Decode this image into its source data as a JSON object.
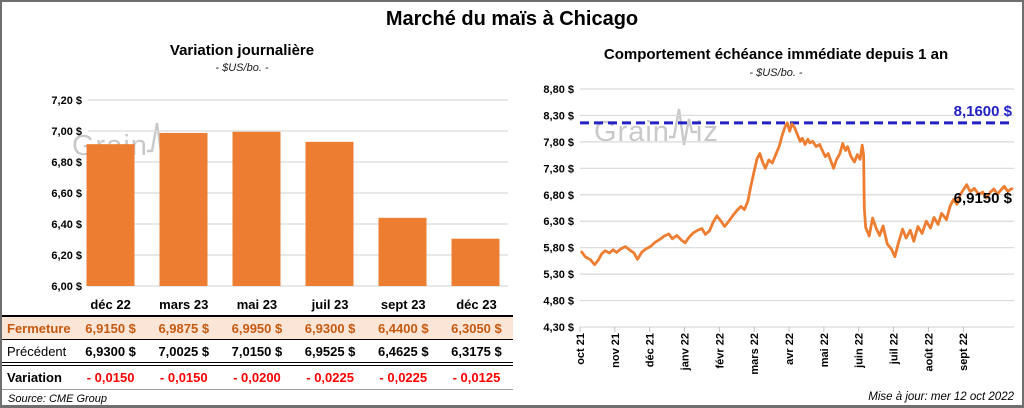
{
  "page": {
    "title": "Marché du maïs à Chicago",
    "source_note": "Source: CME Group",
    "update_note": "Mise à jour: mer 12 oct 2022",
    "watermark_prefix": "Grain",
    "watermark_suffix": "iz"
  },
  "colors": {
    "orange": "#ED7D31",
    "blue": "#2121C4",
    "red": "#FF0000",
    "highlight_row_bg": "#FBE5D6",
    "highlight_row_text": "#C55A11",
    "gridline": "#D9D9D9",
    "tick": "#BFBFBF",
    "watermark": "#c9c9c9"
  },
  "chart_data": [
    {
      "type": "bar",
      "title": "Variation journalière",
      "subtitle": "- $US/bo. -",
      "categories": [
        "déc 22",
        "mars 23",
        "mai 23",
        "juil 23",
        "sept 23",
        "déc 23"
      ],
      "values": [
        6.915,
        6.9875,
        6.995,
        6.93,
        6.44,
        6.305
      ],
      "ylim": [
        6.0,
        7.2
      ],
      "ytick_step": 0.2,
      "ytick_labels": [
        "7,20 $",
        "7,00 $",
        "6,80 $",
        "6,60 $",
        "6,40 $",
        "6,20 $",
        "6,00 $"
      ],
      "bar_color": "#ED7D31",
      "grid": true,
      "legend": null
    },
    {
      "type": "line",
      "title": "Comportement échéance immédiate depuis 1 an",
      "subtitle": "- $US/bo. -",
      "x_tick_labels": [
        "oct 21",
        "nov 21",
        "déc 21",
        "janv 22",
        "févr 22",
        "mars 22",
        "avr 22",
        "mai 22",
        "juin 22",
        "juil 22",
        "août 22",
        "sept 22"
      ],
      "x_max_months": 12.4,
      "ylim": [
        4.3,
        8.8
      ],
      "ytick_step": 0.5,
      "ytick_labels": [
        "8,80 $",
        "8,30 $",
        "7,80 $",
        "7,30 $",
        "6,80 $",
        "6,30 $",
        "5,80 $",
        "5,30 $",
        "4,80 $",
        "4,30 $"
      ],
      "line_color": "#ED7D31",
      "reference_line": {
        "value": 8.16,
        "label": "8,1600 $",
        "color": "#2121C4",
        "style": "dashed"
      },
      "end_label": {
        "value": 6.915,
        "label": "6,9150 $"
      },
      "grid": true,
      "series": [
        {
          "name": "échéance immédiate ($US/bo.)",
          "points": [
            [
              0.05,
              5.72
            ],
            [
              0.15,
              5.63
            ],
            [
              0.3,
              5.57
            ],
            [
              0.42,
              5.48
            ],
            [
              0.52,
              5.56
            ],
            [
              0.62,
              5.68
            ],
            [
              0.72,
              5.74
            ],
            [
              0.85,
              5.7
            ],
            [
              0.95,
              5.76
            ],
            [
              1.05,
              5.71
            ],
            [
              1.18,
              5.78
            ],
            [
              1.3,
              5.82
            ],
            [
              1.42,
              5.76
            ],
            [
              1.55,
              5.7
            ],
            [
              1.65,
              5.58
            ],
            [
              1.78,
              5.72
            ],
            [
              1.9,
              5.78
            ],
            [
              2.02,
              5.82
            ],
            [
              2.15,
              5.9
            ],
            [
              2.3,
              5.96
            ],
            [
              2.42,
              6.02
            ],
            [
              2.55,
              6.06
            ],
            [
              2.65,
              5.97
            ],
            [
              2.78,
              6.03
            ],
            [
              2.9,
              5.95
            ],
            [
              3.02,
              5.89
            ],
            [
              3.12,
              5.99
            ],
            [
              3.25,
              6.08
            ],
            [
              3.38,
              6.13
            ],
            [
              3.5,
              6.16
            ],
            [
              3.6,
              6.05
            ],
            [
              3.72,
              6.12
            ],
            [
              3.82,
              6.28
            ],
            [
              3.93,
              6.4
            ],
            [
              4.04,
              6.31
            ],
            [
              4.15,
              6.2
            ],
            [
              4.27,
              6.3
            ],
            [
              4.38,
              6.4
            ],
            [
              4.5,
              6.5
            ],
            [
              4.62,
              6.58
            ],
            [
              4.72,
              6.52
            ],
            [
              4.82,
              6.68
            ],
            [
              4.9,
              6.95
            ],
            [
              5.0,
              7.25
            ],
            [
              5.08,
              7.48
            ],
            [
              5.16,
              7.58
            ],
            [
              5.24,
              7.42
            ],
            [
              5.32,
              7.3
            ],
            [
              5.42,
              7.46
            ],
            [
              5.52,
              7.4
            ],
            [
              5.62,
              7.56
            ],
            [
              5.72,
              7.72
            ],
            [
              5.8,
              7.92
            ],
            [
              5.88,
              8.08
            ],
            [
              5.95,
              8.16
            ],
            [
              6.02,
              8.0
            ],
            [
              6.08,
              8.14
            ],
            [
              6.16,
              8.07
            ],
            [
              6.24,
              7.94
            ],
            [
              6.32,
              7.81
            ],
            [
              6.38,
              7.87
            ],
            [
              6.46,
              7.75
            ],
            [
              6.54,
              7.85
            ],
            [
              6.6,
              7.78
            ],
            [
              6.68,
              7.81
            ],
            [
              6.78,
              7.71
            ],
            [
              6.88,
              7.75
            ],
            [
              6.96,
              7.63
            ],
            [
              7.04,
              7.52
            ],
            [
              7.12,
              7.58
            ],
            [
              7.2,
              7.44
            ],
            [
              7.28,
              7.3
            ],
            [
              7.36,
              7.46
            ],
            [
              7.46,
              7.58
            ],
            [
              7.54,
              7.77
            ],
            [
              7.62,
              7.64
            ],
            [
              7.68,
              7.71
            ],
            [
              7.78,
              7.52
            ],
            [
              7.88,
              7.42
            ],
            [
              7.96,
              7.56
            ],
            [
              8.04,
              7.47
            ],
            [
              8.1,
              7.74
            ],
            [
              8.14,
              7.55
            ],
            [
              8.16,
              6.55
            ],
            [
              8.2,
              6.18
            ],
            [
              8.3,
              6.02
            ],
            [
              8.4,
              6.36
            ],
            [
              8.5,
              6.17
            ],
            [
              8.6,
              6.03
            ],
            [
              8.7,
              6.21
            ],
            [
              8.82,
              5.87
            ],
            [
              8.94,
              5.77
            ],
            [
              9.04,
              5.63
            ],
            [
              9.14,
              5.89
            ],
            [
              9.26,
              6.15
            ],
            [
              9.36,
              5.98
            ],
            [
              9.48,
              6.13
            ],
            [
              9.58,
              5.92
            ],
            [
              9.7,
              6.2
            ],
            [
              9.82,
              6.07
            ],
            [
              9.94,
              6.3
            ],
            [
              10.06,
              6.17
            ],
            [
              10.16,
              6.37
            ],
            [
              10.28,
              6.24
            ],
            [
              10.38,
              6.45
            ],
            [
              10.52,
              6.33
            ],
            [
              10.62,
              6.58
            ],
            [
              10.72,
              6.71
            ],
            [
              10.82,
              6.62
            ],
            [
              10.92,
              6.81
            ],
            [
              11.02,
              6.91
            ],
            [
              11.1,
              6.99
            ],
            [
              11.2,
              6.86
            ],
            [
              11.32,
              6.92
            ],
            [
              11.44,
              6.81
            ],
            [
              11.56,
              6.85
            ],
            [
              11.66,
              6.74
            ],
            [
              11.78,
              6.85
            ],
            [
              11.88,
              6.91
            ],
            [
              11.98,
              6.81
            ],
            [
              12.08,
              6.89
            ],
            [
              12.18,
              6.96
            ],
            [
              12.28,
              6.86
            ],
            [
              12.35,
              6.9
            ],
            [
              12.4,
              6.915
            ]
          ]
        }
      ]
    }
  ],
  "table": {
    "columns": [
      "déc 22",
      "mars 23",
      "mai 23",
      "juil 23",
      "sept 23",
      "déc 23"
    ],
    "rows": [
      {
        "label": "Fermeture",
        "style": "highlight",
        "values": [
          "6,9150 $",
          "6,9875 $",
          "6,9950 $",
          "6,9300 $",
          "6,4400 $",
          "6,3050 $"
        ]
      },
      {
        "label": "Précédent",
        "style": "normal",
        "values": [
          "6,9300 $",
          "7,0025 $",
          "7,0150 $",
          "6,9525 $",
          "6,4625 $",
          "6,3175 $"
        ]
      },
      {
        "label": "Variation",
        "style": "negative",
        "values": [
          "- 0,0150",
          "- 0,0150",
          "- 0,0200",
          "- 0,0225",
          "- 0,0225",
          "- 0,0125"
        ]
      }
    ]
  }
}
